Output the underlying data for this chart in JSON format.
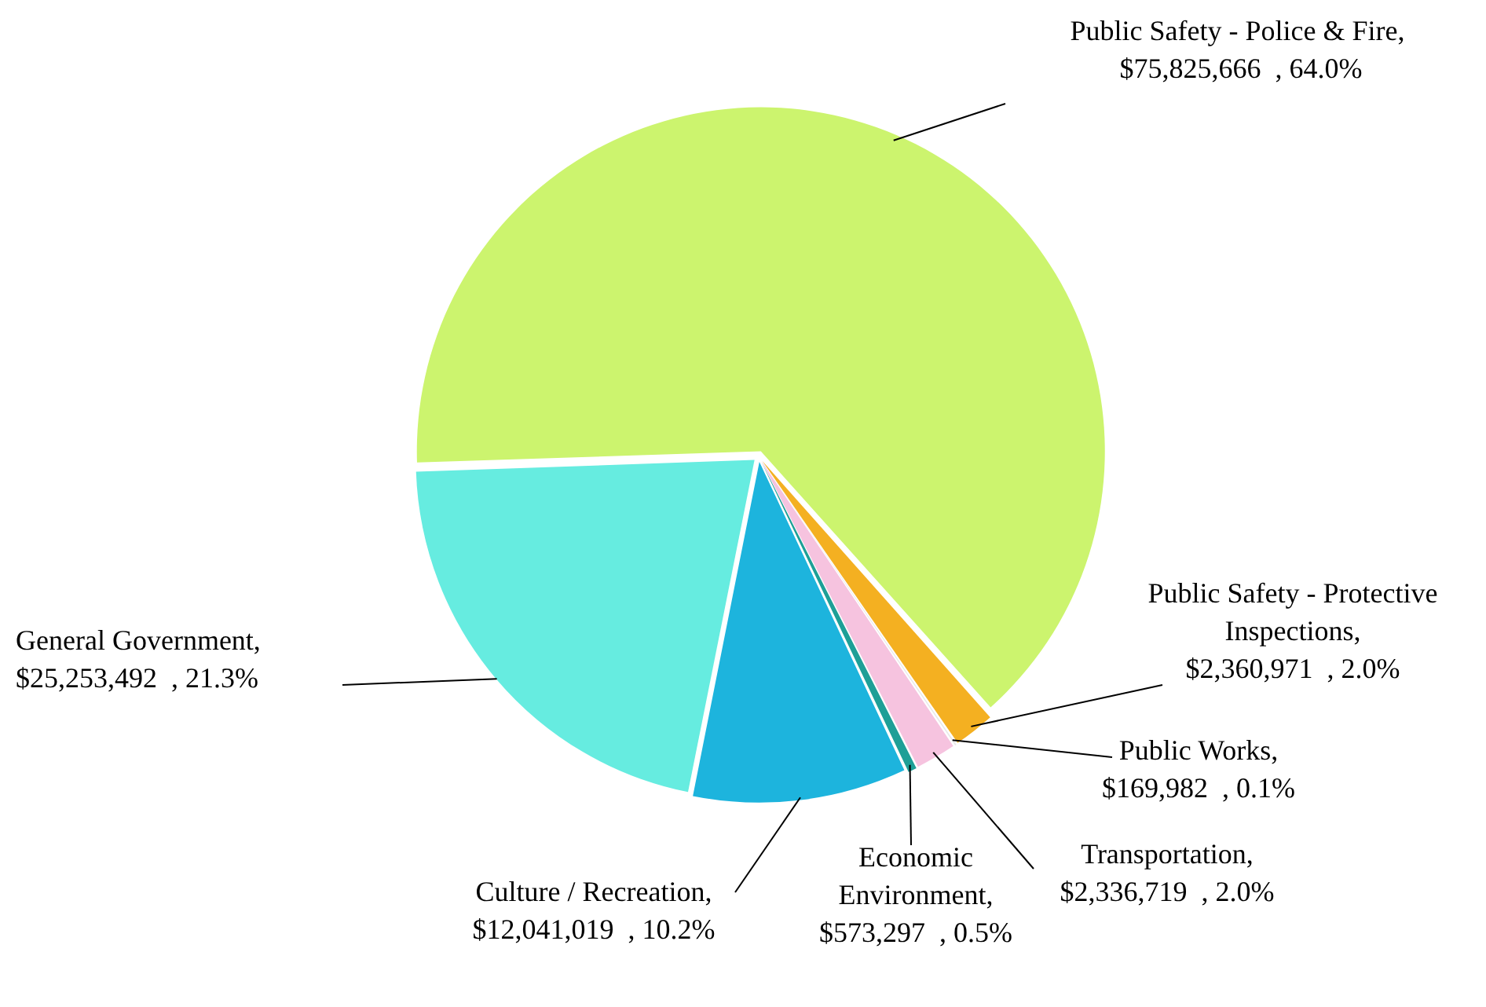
{
  "chart_data": {
    "type": "pie",
    "categories": [
      "Public Safety - Police & Fire",
      "Public Safety - Protective Inspections",
      "Public Works",
      "Transportation",
      "Economic Environment",
      "Culture / Recreation",
      "General Government"
    ],
    "values": [
      75825666,
      2360971,
      169982,
      2336719,
      573297,
      12041019,
      25253492
    ],
    "colors": [
      "#ccf46e",
      "#f4b021",
      "#e8e8e8",
      "#f6c3df",
      "#1e9f97",
      "#1db4dd",
      "#66ece0"
    ],
    "value_labels": [
      ",  $75,825,666  , 64.0%",
      ", $2,360,971  , 2.0%",
      ", $169,982  , 0.1%",
      ", $2,336,719  , 2.0%",
      ", $573,297  , 0.5%",
      ", $12,041,019  , 10.2%",
      ", $25,253,492  , 21.3%"
    ]
  }
}
